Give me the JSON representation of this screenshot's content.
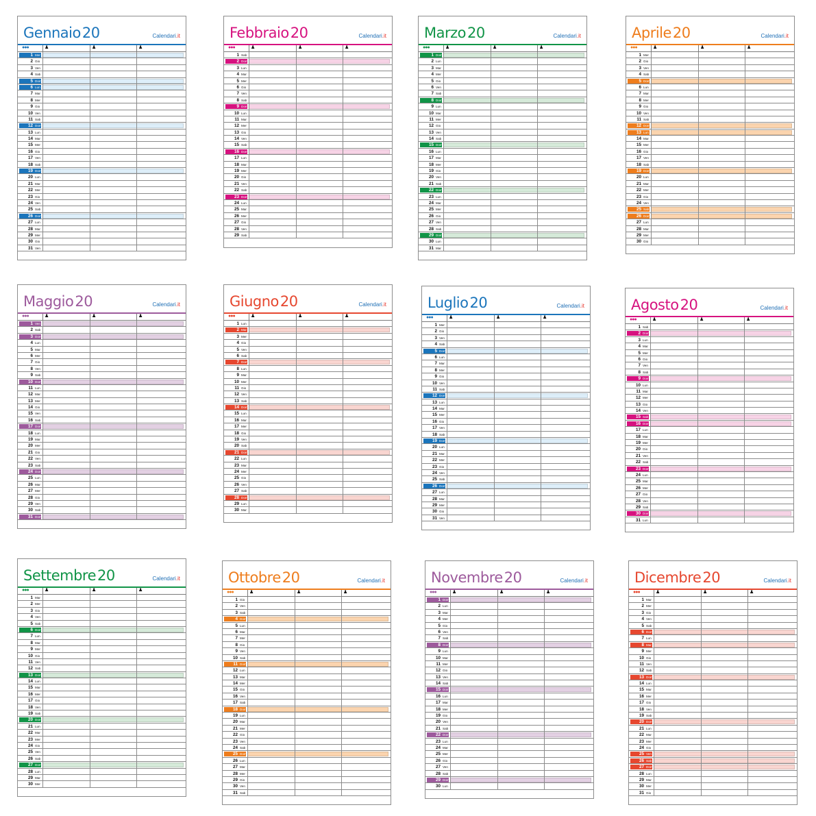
{
  "brand": {
    "part1": "Calendari",
    "part2": ".it"
  },
  "year": "20",
  "header_icons": {
    "group": "group-icon",
    "person": "person-icon"
  },
  "months": [
    {
      "name": "Gennaio",
      "color": "#1b75bb",
      "light": "#ddeef9",
      "start": 3,
      "days": 31,
      "hl": [
        1,
        5,
        6,
        12,
        19,
        26
      ]
    },
    {
      "name": "Febbraio",
      "color": "#d6127f",
      "light": "#f7d3e6",
      "start": 6,
      "days": 29,
      "hl": [
        2,
        9,
        16,
        23
      ]
    },
    {
      "name": "Marzo",
      "color": "#119447",
      "light": "#d5ead9",
      "start": 0,
      "days": 31,
      "hl": [
        1,
        8,
        15,
        22,
        29
      ]
    },
    {
      "name": "Aprile",
      "color": "#ee7d1d",
      "light": "#fbd4ae",
      "start": 3,
      "days": 30,
      "hl": [
        5,
        12,
        13,
        19,
        25,
        26
      ]
    },
    {
      "name": "Maggio",
      "color": "#9d5a9c",
      "light": "#e3d0e3",
      "start": 5,
      "days": 31,
      "hl": [
        1,
        3,
        10,
        17,
        24,
        31
      ]
    },
    {
      "name": "Giugno",
      "color": "#e6472f",
      "light": "#f9d5d0",
      "start": 1,
      "days": 30,
      "hl": [
        2,
        7,
        14,
        21,
        28
      ]
    },
    {
      "name": "Luglio",
      "color": "#1b75bb",
      "light": "#ddeef9",
      "start": 3,
      "days": 31,
      "hl": [
        5,
        12,
        19,
        26
      ]
    },
    {
      "name": "Agosto",
      "color": "#d6127f",
      "light": "#f7d3e6",
      "start": 6,
      "days": 31,
      "hl": [
        2,
        9,
        15,
        16,
        23,
        30
      ]
    },
    {
      "name": "Settembre",
      "color": "#119447",
      "light": "#d5ead9",
      "start": 2,
      "days": 30,
      "hl": [
        6,
        13,
        20,
        27
      ]
    },
    {
      "name": "Ottobre",
      "color": "#ee7d1d",
      "light": "#fbd4ae",
      "start": 4,
      "days": 31,
      "hl": [
        4,
        11,
        18,
        25
      ]
    },
    {
      "name": "Novembre",
      "color": "#9d5a9c",
      "light": "#e3d0e3",
      "start": 0,
      "days": 30,
      "hl": [
        1,
        8,
        15,
        22,
        29
      ]
    },
    {
      "name": "Dicembre",
      "color": "#e6472f",
      "light": "#f9d5d0",
      "start": 2,
      "days": 31,
      "hl": [
        6,
        8,
        13,
        20,
        25,
        26,
        27
      ]
    }
  ],
  "weekdays": [
    "Dom",
    "Lun",
    "Mar",
    "Mer",
    "Gio",
    "Ven",
    "Sab"
  ]
}
